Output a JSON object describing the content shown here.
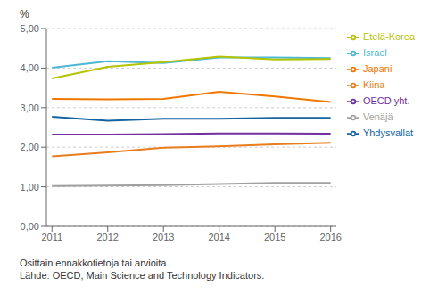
{
  "chart_data": {
    "type": "line",
    "x": [
      2011,
      2012,
      2013,
      2014,
      2015,
      2016
    ],
    "series": [
      {
        "name": "Israel",
        "color": "#4db8d4",
        "values": [
          4.01,
          4.17,
          4.13,
          4.27,
          4.27,
          4.25
        ]
      },
      {
        "name": "Etelä-Korea",
        "color": "#b5c400",
        "values": [
          3.74,
          4.03,
          4.15,
          4.29,
          4.22,
          4.23
        ]
      },
      {
        "name": "Japani",
        "color": "#f07800",
        "values": [
          3.22,
          3.21,
          3.22,
          3.4,
          3.28,
          3.14
        ]
      },
      {
        "name": "Yhdysvallat",
        "color": "#1464a0",
        "values": [
          2.77,
          2.67,
          2.72,
          2.72,
          2.74,
          2.74
        ]
      },
      {
        "name": "OECD yht.",
        "color": "#7030a0",
        "values": [
          2.32,
          2.32,
          2.33,
          2.35,
          2.35,
          2.34
        ]
      },
      {
        "name": "Kiina",
        "color": "#e87d1e",
        "values": [
          1.77,
          1.87,
          1.99,
          2.02,
          2.07,
          2.11
        ]
      },
      {
        "name": "Venäjä",
        "color": "#a0a0a0",
        "values": [
          1.02,
          1.03,
          1.04,
          1.07,
          1.1,
          1.1
        ]
      }
    ],
    "ylabel": "%",
    "xlim": [
      2010.9,
      2016.1
    ],
    "xticks": [
      2011,
      2012,
      2013,
      2014,
      2015,
      2016
    ],
    "ylim": [
      0.0,
      5.0
    ],
    "yticks": [
      {
        "value": 0.0,
        "label": "0,00"
      },
      {
        "value": 1.0,
        "label": "1,00"
      },
      {
        "value": 2.0,
        "label": "2,00"
      },
      {
        "value": 3.0,
        "label": "3,00"
      },
      {
        "value": 4.0,
        "label": "4,00"
      },
      {
        "value": 5.0,
        "label": "5,00"
      }
    ],
    "grid": true,
    "legend": "right",
    "annotations": [
      "Osittain ennakkotietoja tai arvioita.",
      "Lähde: OECD, Main Science and Technology Indicators."
    ]
  }
}
